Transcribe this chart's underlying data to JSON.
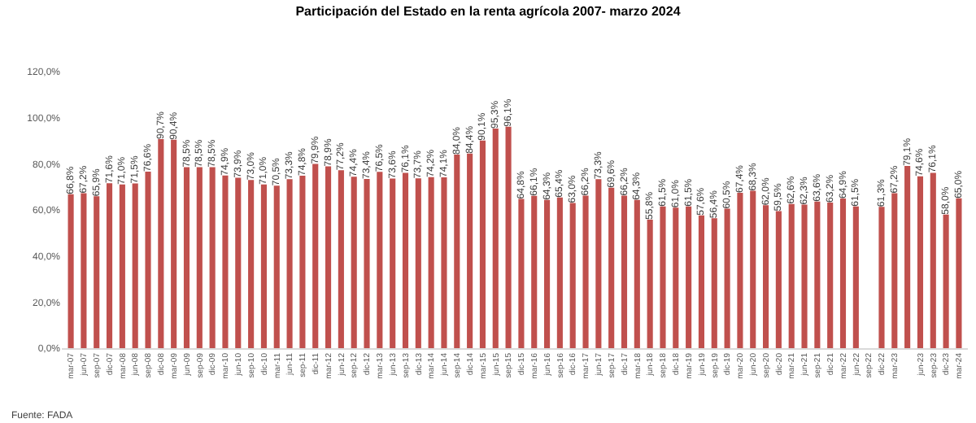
{
  "chart_data": {
    "type": "bar",
    "title": "Participación del Estado en la renta agrícola 2007- marzo 2024",
    "categories": [
      "mar-07",
      "jun-07",
      "sep-07",
      "dic-07",
      "mar-08",
      "jun-08",
      "sep-08",
      "dic-08",
      "mar-09",
      "jun-09",
      "sep-09",
      "dic-09",
      "mar-10",
      "jun-10",
      "sep-10",
      "dic-10",
      "mar-11",
      "jun-11",
      "sep-11",
      "dic-11",
      "mar-12",
      "jun-12",
      "sep-12",
      "dic-12",
      "mar-13",
      "jun-13",
      "sep-13",
      "dic-13",
      "mar-14",
      "jun-14",
      "sep-14",
      "dic-14",
      "mar-15",
      "jun-15",
      "sep-15",
      "dic-15",
      "mar-16",
      "jun-16",
      "sep-16",
      "dic-16",
      "mar-17",
      "jun-17",
      "sep-17",
      "dic-17",
      "mar-18",
      "jun-18",
      "sep-18",
      "dic-18",
      "mar-19",
      "jun-19",
      "sep-19",
      "dic-19",
      "mar-20",
      "jun-20",
      "sep-20",
      "dic-20",
      "mar-21",
      "jun-21",
      "sep-21",
      "dic-21",
      "mar-22",
      "jun-22",
      "sep-22",
      "dic-22",
      "mar-23",
      null,
      "jun-23",
      "sep-23",
      "dic-23",
      "mar-24"
    ],
    "values": [
      66.8,
      67.2,
      65.9,
      71.6,
      71.0,
      71.5,
      76.6,
      90.7,
      90.4,
      78.5,
      78.5,
      78.5,
      74.9,
      73.9,
      73.0,
      71.0,
      70.5,
      73.3,
      74.8,
      79.9,
      78.9,
      77.2,
      74.4,
      73.4,
      76.5,
      73.6,
      76.1,
      73.7,
      74.2,
      74.1,
      84.0,
      84.4,
      90.1,
      95.3,
      96.1,
      64.8,
      66.1,
      64.3,
      65.4,
      63.0,
      66.2,
      73.3,
      69.6,
      66.2,
      64.3,
      55.8,
      61.5,
      61.0,
      61.5,
      57.6,
      56.4,
      60.5,
      67.4,
      68.3,
      62.0,
      59.5,
      62.6,
      62.3,
      63.6,
      63.2,
      64.9,
      61.5,
      null,
      61.3,
      67.2,
      79.1,
      74.6,
      76.1,
      58.0,
      65.0
    ],
    "value_labels": [
      "66,8%",
      "67,2%",
      "65,9%",
      "71,6%",
      "71,0%",
      "71,5%",
      "76,6%",
      "90,7%",
      "90,4%",
      "78,5%",
      "78,5%",
      "78,5%",
      "74,9%",
      "73,9%",
      "73,0%",
      "71,0%",
      "70,5%",
      "73,3%",
      "74,8%",
      "79,9%",
      "78,9%",
      "77,2%",
      "74,4%",
      "73,4%",
      "76,5%",
      "73,6%",
      "76,1%",
      "73,7%",
      "74,2%",
      "74,1%",
      "84,0%",
      "84,4%",
      "90,1%",
      "95,3%",
      "96,1%",
      "64,8%",
      "66,1%",
      "64,3%",
      "65,4%",
      "63,0%",
      "66,2%",
      "73,3%",
      "69,6%",
      "66,2%",
      "64,3%",
      "55,8%",
      "61,5%",
      "61,0%",
      "61,5%",
      "57,6%",
      "56,4%",
      "60,5%",
      "67,4%",
      "68,3%",
      "62,0%",
      "59,5%",
      "62,6%",
      "62,3%",
      "63,6%",
      "63,2%",
      "64,9%",
      "61,5%",
      null,
      "61,3%",
      "67,2%",
      "79,1%",
      "74,6%",
      "76,1%",
      "58,0%",
      "65,0%"
    ],
    "color": "#c0504d",
    "ylim": [
      0,
      120
    ],
    "yticks": [
      {
        "value": 0,
        "label": "0,0%"
      },
      {
        "value": 20,
        "label": "20,0%"
      },
      {
        "value": 40,
        "label": "40,0%"
      },
      {
        "value": 60,
        "label": "60,0%"
      },
      {
        "value": 80,
        "label": "80,0%"
      },
      {
        "value": 100,
        "label": "100,0%"
      },
      {
        "value": 120,
        "label": "120,0%"
      }
    ],
    "annotations": [
      "Fuente: FADA"
    ]
  }
}
